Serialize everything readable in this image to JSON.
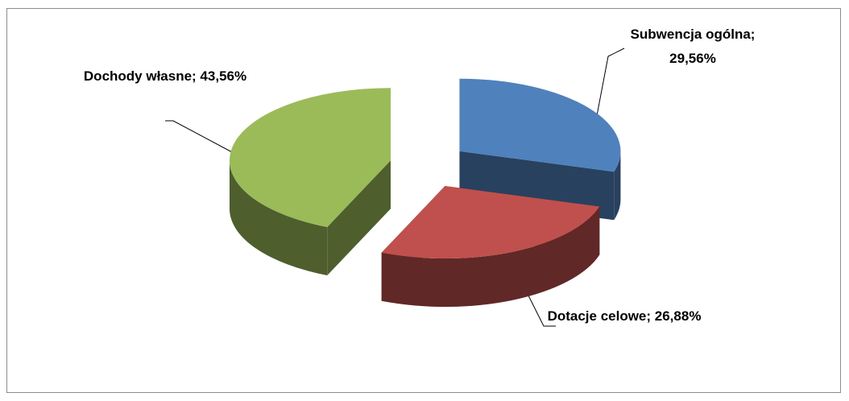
{
  "chart_data": {
    "type": "pie3d",
    "values": [
      29.56,
      26.88,
      43.56
    ],
    "value_labels": [
      "Subwencja ogólna; 29,56%",
      "Dotacje celowe; 26,88%",
      "Dochody własne; 43,56%"
    ],
    "colors": [
      "#4f81bd",
      "#c0504d",
      "#9bbb59"
    ]
  }
}
